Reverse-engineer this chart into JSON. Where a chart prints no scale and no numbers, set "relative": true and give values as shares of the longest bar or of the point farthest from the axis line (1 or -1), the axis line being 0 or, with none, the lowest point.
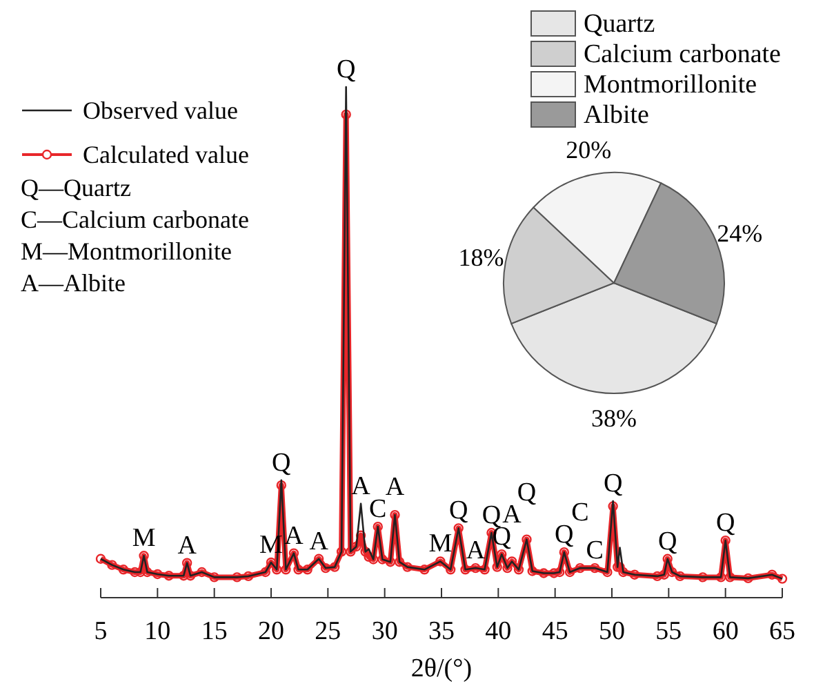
{
  "chart_data": [
    {
      "type": "line",
      "xlabel": "2θ/(°)",
      "relative": true,
      "xlim": [
        5,
        65
      ],
      "xticks": [
        5,
        10,
        15,
        20,
        25,
        30,
        35,
        40,
        45,
        50,
        55,
        60,
        65
      ],
      "tick_labels": "x",
      "legend": "top left",
      "x": [
        5,
        6,
        7,
        8,
        8.5,
        8.8,
        9.1,
        10,
        11,
        12.3,
        12.6,
        12.9,
        13.9,
        15,
        17,
        18,
        19.5,
        20,
        20.5,
        20.9,
        21.3,
        22,
        22.4,
        23.2,
        24.2,
        24.8,
        25.6,
        26.2,
        26.6,
        27,
        27.5,
        27.9,
        28.3,
        28.6,
        29,
        29.4,
        29.8,
        30.5,
        30.9,
        31.3,
        32,
        33.5,
        34.9,
        35.8,
        36.5,
        37.1,
        38,
        38.8,
        39.4,
        39.9,
        40.3,
        40.8,
        41.2,
        41.8,
        42.5,
        43,
        44,
        44.9,
        45.4,
        45.8,
        46.3,
        47.2,
        48.5,
        49.6,
        50.1,
        50.5,
        50.7,
        51,
        52,
        54,
        54.6,
        54.9,
        55.3,
        56,
        58,
        59.6,
        60,
        60.4,
        62,
        64.1,
        65
      ],
      "series": [
        {
          "name": "Calculated value",
          "type": "line",
          "marker": "circle",
          "color": "#e8262a",
          "values": [
            0.076,
            0.064,
            0.055,
            0.05,
            0.05,
            0.082,
            0.05,
            0.046,
            0.043,
            0.043,
            0.068,
            0.043,
            0.05,
            0.04,
            0.04,
            0.042,
            0.05,
            0.069,
            0.055,
            0.22,
            0.055,
            0.087,
            0.055,
            0.055,
            0.076,
            0.058,
            0.06,
            0.09,
            0.946,
            0.09,
            0.1,
            0.122,
            0.09,
            0.08,
            0.075,
            0.139,
            0.075,
            0.07,
            0.162,
            0.07,
            0.06,
            0.055,
            0.071,
            0.055,
            0.136,
            0.055,
            0.058,
            0.055,
            0.127,
            0.06,
            0.085,
            0.058,
            0.071,
            0.055,
            0.114,
            0.052,
            0.048,
            0.048,
            0.05,
            0.089,
            0.05,
            0.058,
            0.058,
            0.05,
            0.179,
            0.06,
            0.06,
            0.05,
            0.045,
            0.042,
            0.045,
            0.076,
            0.05,
            0.042,
            0.04,
            0.04,
            0.112,
            0.04,
            0.038,
            0.045,
            0.037
          ]
        },
        {
          "name": "Observed value",
          "type": "line",
          "color": "#222222",
          "values": [
            0.076,
            0.064,
            0.055,
            0.05,
            0.05,
            0.082,
            0.05,
            0.046,
            0.043,
            0.043,
            0.068,
            0.043,
            0.05,
            0.04,
            0.04,
            0.042,
            0.05,
            0.069,
            0.055,
            0.23,
            0.055,
            0.087,
            0.055,
            0.055,
            0.076,
            0.058,
            0.06,
            0.09,
            1.0,
            0.09,
            0.1,
            0.184,
            0.09,
            0.095,
            0.075,
            0.139,
            0.075,
            0.07,
            0.162,
            0.07,
            0.06,
            0.055,
            0.071,
            0.055,
            0.136,
            0.055,
            0.058,
            0.055,
            0.127,
            0.06,
            0.085,
            0.058,
            0.071,
            0.055,
            0.114,
            0.052,
            0.048,
            0.048,
            0.05,
            0.089,
            0.05,
            0.058,
            0.058,
            0.05,
            0.189,
            0.06,
            0.098,
            0.05,
            0.045,
            0.042,
            0.045,
            0.076,
            0.05,
            0.042,
            0.04,
            0.04,
            0.112,
            0.04,
            0.038,
            0.045,
            0.037
          ]
        }
      ],
      "annotations": [
        "Q—Quartz",
        "C—Calcium carbonate",
        "M—Montmorillonite",
        "A—Albite",
        {
          "text": "M",
          "x": 8.8,
          "y": 0.082
        },
        {
          "text": "A",
          "x": 12.6,
          "y": 0.068
        },
        {
          "text": "M",
          "x": 20,
          "y": 0.069
        },
        {
          "text": "Q",
          "x": 20.9,
          "y": 0.23
        },
        {
          "text": "A",
          "x": 22,
          "y": 0.087
        },
        {
          "text": "A",
          "x": 24.2,
          "y": 0.076
        },
        {
          "text": "Q",
          "x": 26.6,
          "y": 1.0
        },
        {
          "text": "A",
          "x": 27.9,
          "y": 0.184
        },
        {
          "text": "C",
          "x": 29.4,
          "y": 0.139
        },
        {
          "text": "A",
          "x": 30.9,
          "y": 0.162
        },
        {
          "text": "M",
          "x": 34.9,
          "y": 0.071
        },
        {
          "text": "Q",
          "x": 36.5,
          "y": 0.136
        },
        {
          "text": "A",
          "x": 38,
          "y": 0.058
        },
        {
          "text": "Q",
          "x": 39.4,
          "y": 0.127
        },
        {
          "text": "Q",
          "x": 40.3,
          "y": 0.085
        },
        {
          "text": "A",
          "x": 41.2,
          "y": 0.071
        },
        {
          "text": "Q",
          "x": 42.5,
          "y": 0.114
        },
        {
          "text": "Q",
          "x": 45.8,
          "y": 0.089
        },
        {
          "text": "C",
          "x": 47.2,
          "y": 0.058
        },
        {
          "text": "C",
          "x": 48.5,
          "y": 0.058
        },
        {
          "text": "Q",
          "x": 50.1,
          "y": 0.189
        },
        {
          "text": "Q",
          "x": 54.9,
          "y": 0.076
        },
        {
          "text": "Q",
          "x": 60,
          "y": 0.112
        }
      ]
    },
    {
      "type": "pie",
      "categories": [
        "Quartz",
        "Calcium carbonate",
        "Montmorillonite",
        "Albite"
      ],
      "values": [
        38,
        18,
        20,
        24
      ],
      "colors": [
        "#e6e6e6",
        "#cfcfcf",
        "#f4f4f4",
        "#9a9a9a"
      ],
      "value_labels": [
        "38%",
        "18%",
        "20%",
        "24%"
      ],
      "legend": "top"
    }
  ]
}
